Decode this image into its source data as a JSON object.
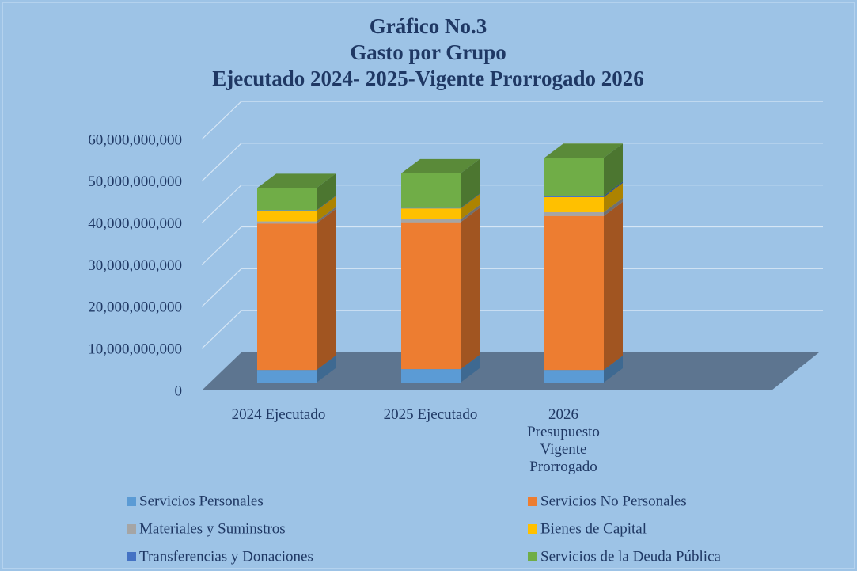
{
  "chart_data": {
    "type": "bar3d_stacked",
    "title": "Gráfico No.3",
    "subtitle": [
      "Gasto por Grupo",
      "Ejecutado 2024- 2025-Vigente Prorrogado 2026"
    ],
    "categories": [
      "2024 Ejecutado",
      "2025 Ejecutado",
      "2026 Presupuesto Vigente Prorrogado"
    ],
    "series": [
      {
        "name": "Servicios Personales",
        "color": "#5b9bd5",
        "values": [
          3000000000,
          3200000000,
          3000000000
        ]
      },
      {
        "name": "Servicios No Personales",
        "color": "#ed7d31",
        "values": [
          35000000000,
          35100000000,
          36800000000
        ]
      },
      {
        "name": "Materiales y Suminstros",
        "color": "#a5a5a5",
        "values": [
          500000000,
          700000000,
          900000000
        ]
      },
      {
        "name": "Bienes de Capital",
        "color": "#ffc000",
        "values": [
          2600000000,
          2600000000,
          3600000000
        ]
      },
      {
        "name": "Transferencias y Donaciones",
        "color": "#4472c4",
        "values": [
          100000000,
          100000000,
          300000000
        ]
      },
      {
        "name": "Servicios de la Deuda Pública",
        "color": "#70ad47",
        "values": [
          5300000000,
          8300000000,
          9100000000
        ]
      }
    ],
    "ylim": [
      0,
      60000000000
    ],
    "yticks": [
      0,
      {
        "value": 10000000000,
        "label": "10,000,000,000"
      },
      {
        "value": 20000000000,
        "label": "20,000,000,000"
      },
      {
        "value": 30000000000,
        "label": "30,000,000,000"
      },
      {
        "value": 40000000000,
        "label": "40,000,000,000"
      },
      {
        "value": 50000000000,
        "label": "50,000,000,000"
      },
      {
        "value": 60000000000,
        "label": "60,000,000,000"
      }
    ],
    "grid": true,
    "legend": "bottom"
  }
}
